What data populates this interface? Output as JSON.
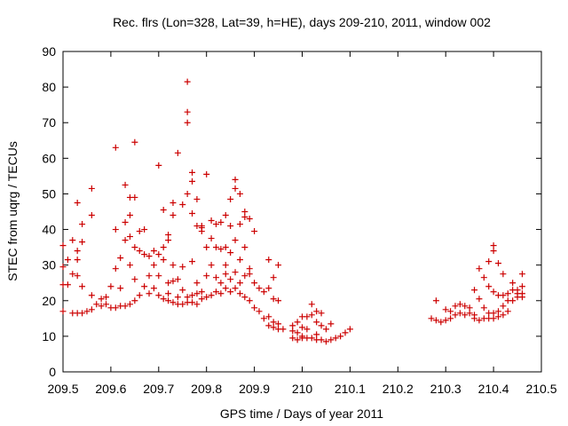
{
  "chart_data": {
    "type": "scatter",
    "title": "Rec. flrs (Lon=328, Lat=39, h=HE), days 209-210, 2011, window 002",
    "xlabel": "GPS time / Days of year 2011",
    "ylabel": "STEC from uqrg / TECUs",
    "xlim": [
      209.5,
      210.5
    ],
    "ylim": [
      0,
      90
    ],
    "xticks": [
      209.5,
      209.6,
      209.7,
      209.8,
      209.9,
      210.0,
      210.1,
      210.2,
      210.3,
      210.4,
      210.5
    ],
    "xtick_labels": [
      "209.5",
      "209.6",
      "209.7",
      "209.8",
      "209.9",
      "210",
      "210.1",
      "210.2",
      "210.3",
      "210.4",
      "210.5"
    ],
    "yticks": [
      0,
      10,
      20,
      30,
      40,
      50,
      60,
      70,
      80,
      90
    ],
    "ytick_labels": [
      "0",
      "10",
      "20",
      "30",
      "40",
      "50",
      "60",
      "70",
      "80",
      "90"
    ],
    "marker": "+",
    "color": "#cc0000",
    "series": [
      {
        "name": "STEC",
        "points": [
          [
            209.5,
            24.5
          ],
          [
            209.5,
            29.5
          ],
          [
            209.5,
            35.5
          ],
          [
            209.5,
            17.0
          ],
          [
            209.51,
            24.5
          ],
          [
            209.51,
            31.5
          ],
          [
            209.52,
            37.0
          ],
          [
            209.52,
            27.5
          ],
          [
            209.52,
            16.5
          ],
          [
            209.53,
            34.0
          ],
          [
            209.53,
            47.5
          ],
          [
            209.53,
            31.5
          ],
          [
            209.53,
            27.0
          ],
          [
            209.53,
            16.5
          ],
          [
            209.54,
            41.5
          ],
          [
            209.54,
            36.5
          ],
          [
            209.54,
            24.0
          ],
          [
            209.54,
            16.5
          ],
          [
            209.55,
            17.0
          ],
          [
            209.56,
            51.5
          ],
          [
            209.56,
            44.0
          ],
          [
            209.56,
            21.5
          ],
          [
            209.56,
            17.5
          ],
          [
            209.57,
            19.0
          ],
          [
            209.58,
            20.5
          ],
          [
            209.58,
            18.5
          ],
          [
            209.59,
            19.0
          ],
          [
            209.59,
            21.0
          ],
          [
            209.6,
            24.0
          ],
          [
            209.6,
            18.0
          ],
          [
            209.61,
            63.0
          ],
          [
            209.61,
            40.0
          ],
          [
            209.61,
            29.0
          ],
          [
            209.61,
            18.0
          ],
          [
            209.62,
            32.0
          ],
          [
            209.62,
            23.5
          ],
          [
            209.62,
            18.5
          ],
          [
            209.63,
            52.5
          ],
          [
            209.63,
            42.0
          ],
          [
            209.63,
            37.0
          ],
          [
            209.63,
            18.5
          ],
          [
            209.64,
            49.0
          ],
          [
            209.64,
            44.0
          ],
          [
            209.64,
            38.0
          ],
          [
            209.64,
            30.0
          ],
          [
            209.64,
            19.0
          ],
          [
            209.65,
            64.5
          ],
          [
            209.65,
            49.0
          ],
          [
            209.65,
            35.0
          ],
          [
            209.65,
            26.0
          ],
          [
            209.65,
            20.0
          ],
          [
            209.66,
            39.5
          ],
          [
            209.66,
            34.0
          ],
          [
            209.66,
            21.5
          ],
          [
            209.67,
            40.0
          ],
          [
            209.67,
            33.0
          ],
          [
            209.67,
            24.0
          ],
          [
            209.68,
            32.5
          ],
          [
            209.68,
            27.0
          ],
          [
            209.68,
            22.0
          ],
          [
            209.69,
            34.0
          ],
          [
            209.69,
            30.0
          ],
          [
            209.69,
            23.5
          ],
          [
            209.7,
            58.0
          ],
          [
            209.7,
            27.0
          ],
          [
            209.7,
            33.0
          ],
          [
            209.7,
            21.5
          ],
          [
            209.71,
            45.5
          ],
          [
            209.71,
            35.0
          ],
          [
            209.71,
            31.5
          ],
          [
            209.71,
            20.5
          ],
          [
            209.72,
            38.5
          ],
          [
            209.72,
            37.0
          ],
          [
            209.72,
            25.0
          ],
          [
            209.72,
            22.0
          ],
          [
            209.72,
            20.0
          ],
          [
            209.73,
            47.5
          ],
          [
            209.73,
            44.0
          ],
          [
            209.73,
            30.0
          ],
          [
            209.73,
            25.5
          ],
          [
            209.73,
            19.5
          ],
          [
            209.74,
            61.5
          ],
          [
            209.74,
            26.0
          ],
          [
            209.74,
            21.0
          ],
          [
            209.74,
            19.0
          ],
          [
            209.75,
            47.0
          ],
          [
            209.75,
            29.5
          ],
          [
            209.75,
            23.0
          ],
          [
            209.75,
            19.0
          ],
          [
            209.76,
            81.5
          ],
          [
            209.76,
            73.0
          ],
          [
            209.76,
            70.0
          ],
          [
            209.76,
            50.0
          ],
          [
            209.76,
            21.0
          ],
          [
            209.76,
            19.5
          ],
          [
            209.77,
            56.0
          ],
          [
            209.77,
            53.5
          ],
          [
            209.77,
            44.5
          ],
          [
            209.77,
            31.0
          ],
          [
            209.77,
            21.5
          ],
          [
            209.77,
            19.5
          ],
          [
            209.78,
            48.5
          ],
          [
            209.78,
            41.0
          ],
          [
            209.78,
            25.0
          ],
          [
            209.78,
            22.0
          ],
          [
            209.78,
            19.0
          ],
          [
            209.79,
            41.0
          ],
          [
            209.79,
            40.5
          ],
          [
            209.79,
            39.5
          ],
          [
            209.79,
            22.5
          ],
          [
            209.79,
            20.5
          ],
          [
            209.8,
            55.5
          ],
          [
            209.8,
            35.0
          ],
          [
            209.8,
            27.0
          ],
          [
            209.8,
            21.0
          ],
          [
            209.81,
            42.5
          ],
          [
            209.81,
            37.5
          ],
          [
            209.81,
            30.0
          ],
          [
            209.81,
            21.5
          ],
          [
            209.82,
            41.5
          ],
          [
            209.82,
            35.0
          ],
          [
            209.82,
            26.5
          ],
          [
            209.82,
            22.5
          ],
          [
            209.83,
            42.0
          ],
          [
            209.83,
            34.5
          ],
          [
            209.83,
            25.0
          ],
          [
            209.83,
            22.0
          ],
          [
            209.84,
            44.0
          ],
          [
            209.84,
            35.0
          ],
          [
            209.84,
            30.0
          ],
          [
            209.84,
            27.5
          ],
          [
            209.84,
            23.5
          ],
          [
            209.85,
            48.5
          ],
          [
            209.85,
            41.0
          ],
          [
            209.85,
            33.5
          ],
          [
            209.85,
            26.0
          ],
          [
            209.85,
            22.5
          ],
          [
            209.86,
            54.0
          ],
          [
            209.86,
            51.5
          ],
          [
            209.86,
            37.0
          ],
          [
            209.86,
            28.0
          ],
          [
            209.86,
            23.5
          ],
          [
            209.87,
            50.0
          ],
          [
            209.87,
            41.5
          ],
          [
            209.87,
            31.5
          ],
          [
            209.87,
            25.0
          ],
          [
            209.87,
            22.0
          ],
          [
            209.88,
            45.0
          ],
          [
            209.88,
            43.5
          ],
          [
            209.88,
            35.0
          ],
          [
            209.88,
            27.0
          ],
          [
            209.88,
            21.0
          ],
          [
            209.89,
            43.0
          ],
          [
            209.89,
            29.0
          ],
          [
            209.89,
            27.5
          ],
          [
            209.89,
            20.0
          ],
          [
            209.9,
            39.5
          ],
          [
            209.9,
            25.0
          ],
          [
            209.9,
            18.0
          ],
          [
            209.91,
            23.5
          ],
          [
            209.91,
            17.0
          ],
          [
            209.92,
            22.5
          ],
          [
            209.92,
            15.0
          ],
          [
            209.93,
            31.5
          ],
          [
            209.93,
            23.5
          ],
          [
            209.93,
            15.5
          ],
          [
            209.93,
            13.0
          ],
          [
            209.94,
            26.5
          ],
          [
            209.94,
            20.5
          ],
          [
            209.94,
            14.0
          ],
          [
            209.94,
            12.5
          ],
          [
            209.95,
            30.0
          ],
          [
            209.95,
            20.0
          ],
          [
            209.95,
            13.5
          ],
          [
            209.95,
            12.0
          ],
          [
            209.96,
            12.0
          ],
          [
            209.98,
            13.0
          ],
          [
            209.98,
            11.5
          ],
          [
            209.98,
            9.5
          ],
          [
            209.99,
            14.0
          ],
          [
            209.99,
            11.0
          ],
          [
            209.99,
            9.0
          ],
          [
            210.0,
            15.5
          ],
          [
            210.0,
            12.5
          ],
          [
            210.0,
            10.0
          ],
          [
            210.0,
            9.5
          ],
          [
            210.01,
            15.5
          ],
          [
            210.01,
            12.0
          ],
          [
            210.01,
            9.5
          ],
          [
            210.02,
            19.0
          ],
          [
            210.02,
            16.0
          ],
          [
            210.02,
            9.5
          ],
          [
            210.03,
            17.0
          ],
          [
            210.03,
            14.0
          ],
          [
            210.03,
            10.5
          ],
          [
            210.03,
            9.0
          ],
          [
            210.04,
            16.5
          ],
          [
            210.04,
            13.0
          ],
          [
            210.04,
            9.0
          ],
          [
            210.05,
            12.0
          ],
          [
            210.05,
            8.5
          ],
          [
            210.06,
            13.5
          ],
          [
            210.06,
            9.0
          ],
          [
            210.07,
            9.5
          ],
          [
            210.08,
            10.0
          ],
          [
            210.09,
            11.0
          ],
          [
            210.1,
            12.0
          ],
          [
            210.27,
            15.0
          ],
          [
            210.28,
            14.5
          ],
          [
            210.28,
            20.0
          ],
          [
            210.29,
            14.0
          ],
          [
            210.3,
            17.5
          ],
          [
            210.3,
            14.5
          ],
          [
            210.31,
            17.0
          ],
          [
            210.31,
            15.0
          ],
          [
            210.32,
            18.5
          ],
          [
            210.32,
            16.0
          ],
          [
            210.33,
            19.0
          ],
          [
            210.33,
            16.5
          ],
          [
            210.34,
            18.5
          ],
          [
            210.34,
            16.0
          ],
          [
            210.35,
            18.0
          ],
          [
            210.35,
            16.5
          ],
          [
            210.36,
            23.0
          ],
          [
            210.36,
            16.0
          ],
          [
            210.36,
            15.0
          ],
          [
            210.37,
            29.0
          ],
          [
            210.37,
            20.5
          ],
          [
            210.37,
            14.5
          ],
          [
            210.38,
            26.5
          ],
          [
            210.38,
            18.0
          ],
          [
            210.38,
            15.0
          ],
          [
            210.39,
            31.0
          ],
          [
            210.39,
            24.0
          ],
          [
            210.39,
            16.5
          ],
          [
            210.39,
            15.0
          ],
          [
            210.4,
            35.5
          ],
          [
            210.4,
            34.0
          ],
          [
            210.4,
            22.5
          ],
          [
            210.4,
            16.5
          ],
          [
            210.4,
            15.0
          ],
          [
            210.41,
            30.5
          ],
          [
            210.41,
            21.5
          ],
          [
            210.41,
            17.0
          ],
          [
            210.41,
            15.5
          ],
          [
            210.42,
            27.5
          ],
          [
            210.42,
            21.5
          ],
          [
            210.42,
            18.5
          ],
          [
            210.42,
            16.0
          ],
          [
            210.43,
            22.0
          ],
          [
            210.43,
            20.0
          ],
          [
            210.43,
            17.0
          ],
          [
            210.44,
            25.0
          ],
          [
            210.44,
            23.0
          ],
          [
            210.44,
            20.0
          ],
          [
            210.45,
            23.0
          ],
          [
            210.45,
            22.0
          ],
          [
            210.45,
            21.0
          ],
          [
            210.46,
            27.5
          ],
          [
            210.46,
            24.0
          ],
          [
            210.46,
            22.0
          ],
          [
            210.46,
            21.0
          ]
        ]
      }
    ]
  }
}
